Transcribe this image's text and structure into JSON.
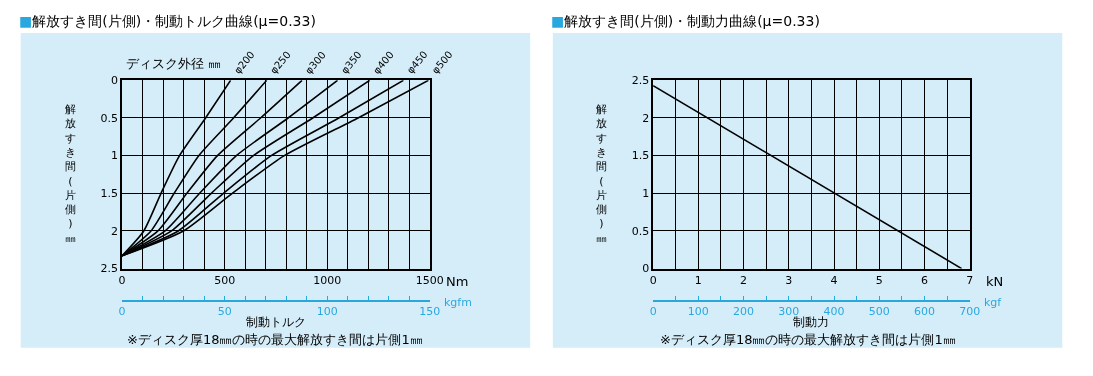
{
  "chart_data": [
    {
      "type": "line",
      "title": "■解放すき間(片側)・制動トルク曲線(μ=0.33)",
      "xlabel": "制動トルク",
      "ylabel": "解放すき間(片側)㎜",
      "x2label": "kgfm",
      "annotations": [
        "ディスク外径 ㎜",
        "Nm",
        "※ディスク厚18㎜の時の最大解放すき間は片側1㎜"
      ],
      "xlim": [
        0,
        1500
      ],
      "xticks": [
        0,
        {
          "value": 100,
          "label": null
        },
        {
          "value": 200,
          "label": null
        },
        {
          "value": 300,
          "label": null
        },
        {
          "value": 400,
          "label": null
        },
        500,
        {
          "value": 600,
          "label": null
        },
        {
          "value": 700,
          "label": null
        },
        {
          "value": 800,
          "label": null
        },
        {
          "value": 900,
          "label": null
        },
        1000,
        {
          "value": 1100,
          "label": null
        },
        {
          "value": 1200,
          "label": null
        },
        {
          "value": 1300,
          "label": null
        },
        {
          "value": 1400,
          "label": null
        },
        1500
      ],
      "x2lim": [
        0,
        150
      ],
      "x2ticks": [
        0,
        {
          "value": 10,
          "label": null
        },
        {
          "value": 20,
          "label": null
        },
        {
          "value": 30,
          "label": null
        },
        {
          "value": 40,
          "label": null
        },
        50,
        {
          "value": 60,
          "label": null
        },
        {
          "value": 70,
          "label": null
        },
        {
          "value": 80,
          "label": null
        },
        {
          "value": 90,
          "label": null
        },
        100,
        {
          "value": 110,
          "label": null
        },
        {
          "value": 120,
          "label": null
        },
        {
          "value": 130,
          "label": null
        },
        {
          "value": 140,
          "label": null
        },
        150
      ],
      "ylim": [
        2.5,
        0
      ],
      "yticks": [
        0,
        0.5,
        1,
        1.5,
        2,
        2.5
      ],
      "grid": true,
      "legend": false,
      "marker": "none",
      "line_style": "solid",
      "series": [
        {
          "name": "φ200",
          "color": "#000000",
          "x": [
            0,
            106,
            190,
            280,
            407,
            529
          ],
          "values": [
            2.33,
            2,
            1.5,
            1,
            0.5,
            0
          ]
        },
        {
          "name": "φ250",
          "color": "#000000",
          "x": [
            0,
            141,
            254,
            374,
            543,
            705
          ],
          "values": [
            2.33,
            2,
            1.5,
            1,
            0.5,
            0
          ]
        },
        {
          "name": "φ300",
          "color": "#000000",
          "x": [
            0,
            175,
            316,
            465,
            675,
            877
          ],
          "values": [
            2.33,
            2,
            1.5,
            1,
            0.5,
            0
          ]
        },
        {
          "name": "φ350",
          "color": "#000000",
          "x": [
            0,
            210,
            378,
            557,
            809,
            1050
          ],
          "values": [
            2.33,
            2,
            1.5,
            1,
            0.5,
            0
          ]
        },
        {
          "name": "φ400",
          "color": "#000000",
          "x": [
            0,
            241,
            435,
            640,
            929,
            1207
          ],
          "values": [
            2.33,
            2,
            1.5,
            1,
            0.5,
            0
          ]
        },
        {
          "name": "φ450",
          "color": "#000000",
          "x": [
            0,
            274,
            494,
            727,
            1056,
            1371
          ],
          "values": [
            2.33,
            2,
            1.5,
            1,
            0.5,
            0
          ]
        },
        {
          "name": "φ500",
          "color": "#000000",
          "x": [
            0,
            299,
            537,
            791,
            1150,
            1493
          ],
          "values": [
            2.33,
            2,
            1.5,
            1,
            0.5,
            0
          ]
        }
      ]
    },
    {
      "type": "line",
      "title": "■解放すき間(片側)・制動力曲線(μ=0.33)",
      "xlabel": "制動力",
      "ylabel": "解放すき間(片側)㎜",
      "x2label": "kgf",
      "annotations": [
        "kN",
        "※ディスク厚18㎜の時の最大解放すき間は片側1㎜"
      ],
      "xlim": [
        0,
        7
      ],
      "xticks": [
        0,
        {
          "value": 0.5,
          "label": null
        },
        1,
        {
          "value": 1.5,
          "label": null
        },
        2,
        {
          "value": 2.5,
          "label": null
        },
        3,
        {
          "value": 3.5,
          "label": null
        },
        4,
        {
          "value": 4.5,
          "label": null
        },
        5,
        {
          "value": 5.5,
          "label": null
        },
        6,
        {
          "value": 6.5,
          "label": null
        },
        7
      ],
      "x2lim": [
        0,
        700
      ],
      "x2ticks": [
        0,
        {
          "value": 50,
          "label": null
        },
        100,
        {
          "value": 150,
          "label": null
        },
        200,
        {
          "value": 250,
          "label": null
        },
        300,
        {
          "value": 350,
          "label": null
        },
        400,
        {
          "value": 450,
          "label": null
        },
        500,
        {
          "value": 550,
          "label": null
        },
        600,
        {
          "value": 650,
          "label": null
        },
        700
      ],
      "ylim": [
        0,
        2.5
      ],
      "yticks": [
        0,
        0.5,
        1,
        1.5,
        2,
        2.5
      ],
      "grid": true,
      "legend": false,
      "marker": "none",
      "line_style": "solid",
      "series": [
        {
          "color": "#000000",
          "x": [
            0,
            6.82
          ],
          "values": [
            2.43,
            0
          ]
        }
      ]
    }
  ]
}
